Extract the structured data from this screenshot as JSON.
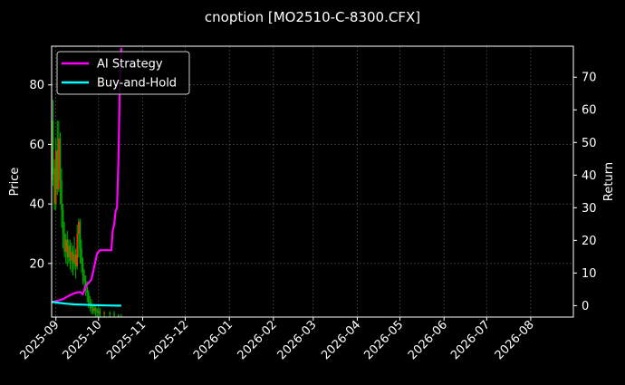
{
  "chart_data": {
    "type": "line",
    "title": "cnoption [MO2510-C-8300.CFX]",
    "xlabel": "",
    "ylabel": "Price",
    "ylabel_right": "Return",
    "x_ticks": [
      "2025-09",
      "2025-10",
      "2025-11",
      "2025-12",
      "2026-01",
      "2026-02",
      "2026-03",
      "2026-04",
      "2026-05",
      "2026-06",
      "2026-07",
      "2026-08"
    ],
    "y_ticks_left": [
      20,
      40,
      60,
      80
    ],
    "y_ticks_right": [
      0,
      10,
      20,
      30,
      40,
      50,
      60,
      70
    ],
    "x_range": [
      "2025-08-29",
      "2026-08-31"
    ],
    "ylim_left": [
      2,
      93
    ],
    "ylim_right": [
      -3.5,
      79.5
    ],
    "grid": true,
    "legend_position": "top-left",
    "candles": [
      {
        "date": "2025-08-29",
        "open": 48,
        "close": 68,
        "high": 90,
        "low": 45
      },
      {
        "date": "2025-08-30",
        "open": 68,
        "close": 50,
        "high": 75,
        "low": 46
      },
      {
        "date": "2025-08-31",
        "open": 52,
        "close": 40,
        "high": 55,
        "low": 38
      },
      {
        "date": "2025-09-01",
        "open": 40,
        "close": 58,
        "high": 62,
        "low": 38
      },
      {
        "date": "2025-09-02",
        "open": 58,
        "close": 45,
        "high": 68,
        "low": 43
      },
      {
        "date": "2025-09-03",
        "open": 45,
        "close": 62,
        "high": 68,
        "low": 44
      },
      {
        "date": "2025-09-04",
        "open": 62,
        "close": 48,
        "high": 64,
        "low": 40
      },
      {
        "date": "2025-09-05",
        "open": 48,
        "close": 38,
        "high": 52,
        "low": 32
      },
      {
        "date": "2025-09-06",
        "open": 38,
        "close": 30,
        "high": 40,
        "low": 25
      },
      {
        "date": "2025-09-07",
        "open": 30,
        "close": 24,
        "high": 34,
        "low": 22
      },
      {
        "date": "2025-09-08",
        "open": 24,
        "close": 28,
        "high": 30,
        "low": 20
      },
      {
        "date": "2025-09-09",
        "open": 28,
        "close": 22,
        "high": 31,
        "low": 19
      },
      {
        "date": "2025-09-10",
        "open": 22,
        "close": 26,
        "high": 28,
        "low": 20
      },
      {
        "date": "2025-09-11",
        "open": 26,
        "close": 21,
        "high": 28,
        "low": 18
      },
      {
        "date": "2025-09-12",
        "open": 21,
        "close": 24,
        "high": 27,
        "low": 17
      },
      {
        "date": "2025-09-13",
        "open": 24,
        "close": 20,
        "high": 26,
        "low": 16
      },
      {
        "date": "2025-09-14",
        "open": 20,
        "close": 23,
        "high": 29,
        "low": 18
      },
      {
        "date": "2025-09-15",
        "open": 23,
        "close": 19,
        "high": 25,
        "low": 15
      },
      {
        "date": "2025-09-16",
        "open": 19,
        "close": 30,
        "high": 33,
        "low": 18
      },
      {
        "date": "2025-09-17",
        "open": 30,
        "close": 34,
        "high": 35,
        "low": 22
      },
      {
        "date": "2025-09-18",
        "open": 34,
        "close": 25,
        "high": 35,
        "low": 20
      },
      {
        "date": "2025-09-19",
        "open": 25,
        "close": 20,
        "high": 28,
        "low": 17
      },
      {
        "date": "2025-09-20",
        "open": 20,
        "close": 16,
        "high": 22,
        "low": 13
      },
      {
        "date": "2025-09-21",
        "open": 16,
        "close": 14,
        "high": 18,
        "low": 11
      },
      {
        "date": "2025-09-22",
        "open": 14,
        "close": 12,
        "high": 16,
        "low": 9
      },
      {
        "date": "2025-09-23",
        "open": 12,
        "close": 10,
        "high": 14,
        "low": 7
      },
      {
        "date": "2025-09-24",
        "open": 10,
        "close": 7,
        "high": 11,
        "low": 5
      },
      {
        "date": "2025-09-25",
        "open": 7,
        "close": 6,
        "high": 9,
        "low": 4
      },
      {
        "date": "2025-09-26",
        "open": 6,
        "close": 5,
        "high": 8,
        "low": 3
      },
      {
        "date": "2025-09-27",
        "open": 5,
        "close": 4,
        "high": 6,
        "low": 3
      },
      {
        "date": "2025-09-28",
        "open": 4,
        "close": 5,
        "high": 6,
        "low": 3
      },
      {
        "date": "2025-09-29",
        "open": 5,
        "close": 4,
        "high": 6,
        "low": 2
      },
      {
        "date": "2025-09-30",
        "open": 4,
        "close": 3.5,
        "high": 5,
        "low": 2
      },
      {
        "date": "2025-10-01",
        "open": 3.5,
        "close": 4,
        "high": 6,
        "low": 2
      },
      {
        "date": "2025-10-02",
        "open": 4,
        "close": 3,
        "high": 5,
        "low": 2
      },
      {
        "date": "2025-10-05",
        "open": 3,
        "close": 3.5,
        "high": 4,
        "low": 2
      },
      {
        "date": "2025-10-09",
        "open": 3.5,
        "close": 3,
        "high": 4,
        "low": 2
      },
      {
        "date": "2025-10-12",
        "open": 3,
        "close": 2.5,
        "high": 4,
        "low": 1.5
      },
      {
        "date": "2025-10-15",
        "open": 2.5,
        "close": 2,
        "high": 3,
        "low": 1
      },
      {
        "date": "2025-10-17",
        "open": 2,
        "close": 1.5,
        "high": 3,
        "low": 1
      }
    ],
    "series": [
      {
        "name": "AI Strategy",
        "color": "#ff00ff",
        "axis": "right",
        "x": [
          "2025-08-29",
          "2025-09-02",
          "2025-09-06",
          "2025-09-10",
          "2025-09-14",
          "2025-09-16",
          "2025-09-18",
          "2025-09-20",
          "2025-09-22",
          "2025-09-24",
          "2025-09-26",
          "2025-09-28",
          "2025-09-30",
          "2025-10-02",
          "2025-10-04",
          "2025-10-06",
          "2025-10-07",
          "2025-10-08",
          "2025-10-09",
          "2025-10-10",
          "2025-10-11",
          "2025-10-12",
          "2025-10-13",
          "2025-10-14",
          "2025-10-15",
          "2025-10-16",
          "2025-10-17"
        ],
        "y": [
          1,
          1.5,
          2,
          3,
          3.8,
          4,
          4.2,
          3.5,
          6,
          7,
          8,
          12,
          16,
          17,
          17,
          17,
          17,
          17,
          17,
          17,
          23,
          25,
          29,
          30,
          45,
          68,
          79
        ]
      },
      {
        "name": "Buy-and-Hold",
        "color": "#00ffff",
        "axis": "right",
        "x": [
          "2025-08-29",
          "2025-09-02",
          "2025-09-08",
          "2025-09-14",
          "2025-09-20",
          "2025-09-26",
          "2025-10-02",
          "2025-10-08",
          "2025-10-14",
          "2025-10-17"
        ],
        "y": [
          1.2,
          0.9,
          0.6,
          0.4,
          0.3,
          0.2,
          0.1,
          0.05,
          0,
          0
        ]
      }
    ],
    "colors": {
      "background": "#000000",
      "frame": "#ffffff",
      "grid": "#555555",
      "candle_up": "#ff2a00",
      "candle_down": "#00b000"
    }
  }
}
